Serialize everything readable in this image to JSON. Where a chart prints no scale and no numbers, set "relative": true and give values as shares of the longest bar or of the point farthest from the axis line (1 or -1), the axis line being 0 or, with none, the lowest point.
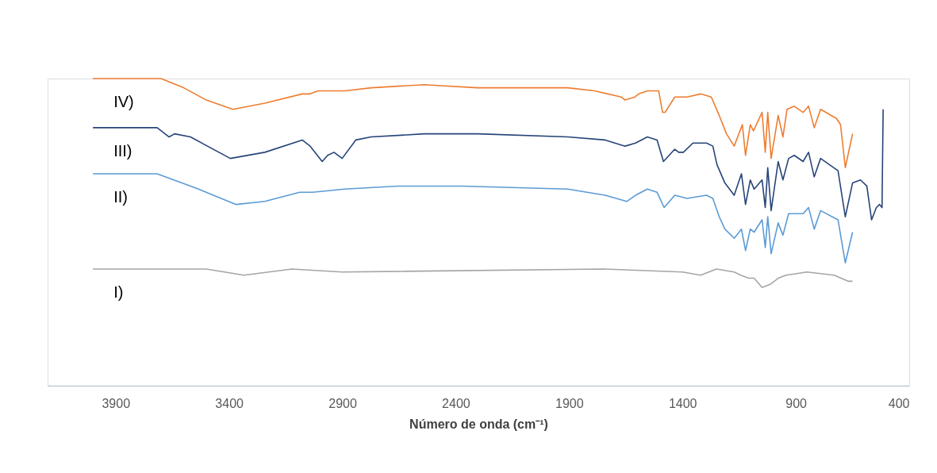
{
  "chart_data": {
    "type": "line",
    "relative": true,
    "xlabel": "Número de onda (cm⁻¹)",
    "xlim": [
      4200,
      400
    ],
    "xticks": [
      3900,
      3400,
      2900,
      2400,
      1900,
      1400,
      900,
      400
    ],
    "grid": false,
    "legend": false,
    "marker": "none",
    "line_style": "solid",
    "series": [
      {
        "name": "IV)",
        "color": "#ed7d31",
        "x": [
          4000,
          3700,
          3600,
          3500,
          3383,
          3242,
          3077,
          3042,
          3007,
          2890,
          2773,
          2539,
          2303,
          2138,
          1906,
          1787,
          1670,
          1653,
          1610,
          1593,
          1555,
          1505,
          1488,
          1477,
          1434,
          1380,
          1320,
          1273,
          1238,
          1206,
          1172,
          1136,
          1122,
          1101,
          1087,
          1049,
          1035,
          1024,
          1009,
          978,
          957,
          939,
          907,
          868,
          844,
          819,
          791,
          721,
          703,
          682,
          650
        ],
        "values": [
          1.0,
          1.0,
          0.97,
          0.93,
          0.9,
          0.92,
          0.95,
          0.95,
          0.96,
          0.96,
          0.97,
          0.98,
          0.97,
          0.97,
          0.97,
          0.96,
          0.94,
          0.93,
          0.94,
          0.95,
          0.96,
          0.96,
          0.89,
          0.89,
          0.94,
          0.94,
          0.95,
          0.94,
          0.88,
          0.82,
          0.78,
          0.85,
          0.75,
          0.85,
          0.83,
          0.89,
          0.76,
          0.89,
          0.74,
          0.88,
          0.81,
          0.9,
          0.91,
          0.89,
          0.91,
          0.84,
          0.9,
          0.87,
          0.85,
          0.71,
          0.82
        ]
      },
      {
        "name": "III)",
        "color": "#264478",
        "x": [
          4000,
          3717,
          3664,
          3640,
          3570,
          3394,
          3242,
          3077,
          3042,
          2989,
          2965,
          2937,
          2901,
          2841,
          2773,
          2539,
          2303,
          1906,
          1741,
          1653,
          1607,
          1555,
          1512,
          1484,
          1434,
          1417,
          1396,
          1354,
          1294,
          1266,
          1248,
          1213,
          1172,
          1140,
          1122,
          1101,
          1084,
          1049,
          1035,
          1024,
          1009,
          978,
          957,
          932,
          907,
          868,
          844,
          819,
          791,
          714,
          682,
          650,
          615,
          587,
          566,
          545,
          531,
          520,
          515
        ],
        "values": [
          0.84,
          0.84,
          0.81,
          0.82,
          0.81,
          0.74,
          0.76,
          0.8,
          0.78,
          0.73,
          0.75,
          0.76,
          0.74,
          0.8,
          0.81,
          0.82,
          0.82,
          0.81,
          0.8,
          0.78,
          0.79,
          0.81,
          0.8,
          0.73,
          0.77,
          0.76,
          0.76,
          0.79,
          0.79,
          0.78,
          0.72,
          0.66,
          0.62,
          0.69,
          0.59,
          0.67,
          0.64,
          0.67,
          0.58,
          0.71,
          0.57,
          0.73,
          0.67,
          0.74,
          0.75,
          0.73,
          0.76,
          0.68,
          0.74,
          0.7,
          0.55,
          0.66,
          0.67,
          0.65,
          0.54,
          0.58,
          0.59,
          0.58,
          0.9
        ]
      },
      {
        "name": "II)",
        "color": "#5b9bd5",
        "x": [
          4000,
          3717,
          3534,
          3369,
          3242,
          3088,
          3031,
          2890,
          2655,
          2374,
          1906,
          1741,
          1646,
          1607,
          1555,
          1512,
          1481,
          1434,
          1380,
          1294,
          1266,
          1238,
          1213,
          1172,
          1140,
          1122,
          1101,
          1084,
          1049,
          1035,
          1024,
          1009,
          978,
          957,
          932,
          907,
          868,
          844,
          819,
          791,
          714,
          682,
          650
        ],
        "values": [
          0.69,
          0.69,
          0.64,
          0.59,
          0.6,
          0.63,
          0.63,
          0.64,
          0.65,
          0.65,
          0.64,
          0.62,
          0.6,
          0.62,
          0.64,
          0.63,
          0.58,
          0.62,
          0.61,
          0.62,
          0.61,
          0.55,
          0.51,
          0.48,
          0.51,
          0.44,
          0.51,
          0.5,
          0.54,
          0.45,
          0.55,
          0.43,
          0.53,
          0.49,
          0.56,
          0.56,
          0.56,
          0.58,
          0.51,
          0.57,
          0.54,
          0.4,
          0.5
        ]
      },
      {
        "name": "I)",
        "color": "#a5a5a5",
        "x": [
          4000,
          3500,
          3334,
          3123,
          2901,
          1750,
          1400,
          1320,
          1250,
          1172,
          1143,
          1108,
          1084,
          1049,
          1013,
          978,
          943,
          851,
          731,
          668,
          650
        ],
        "values": [
          0.38,
          0.38,
          0.36,
          0.38,
          0.37,
          0.38,
          0.37,
          0.36,
          0.38,
          0.37,
          0.36,
          0.35,
          0.35,
          0.32,
          0.33,
          0.35,
          0.36,
          0.37,
          0.36,
          0.34,
          0.34
        ]
      }
    ]
  }
}
